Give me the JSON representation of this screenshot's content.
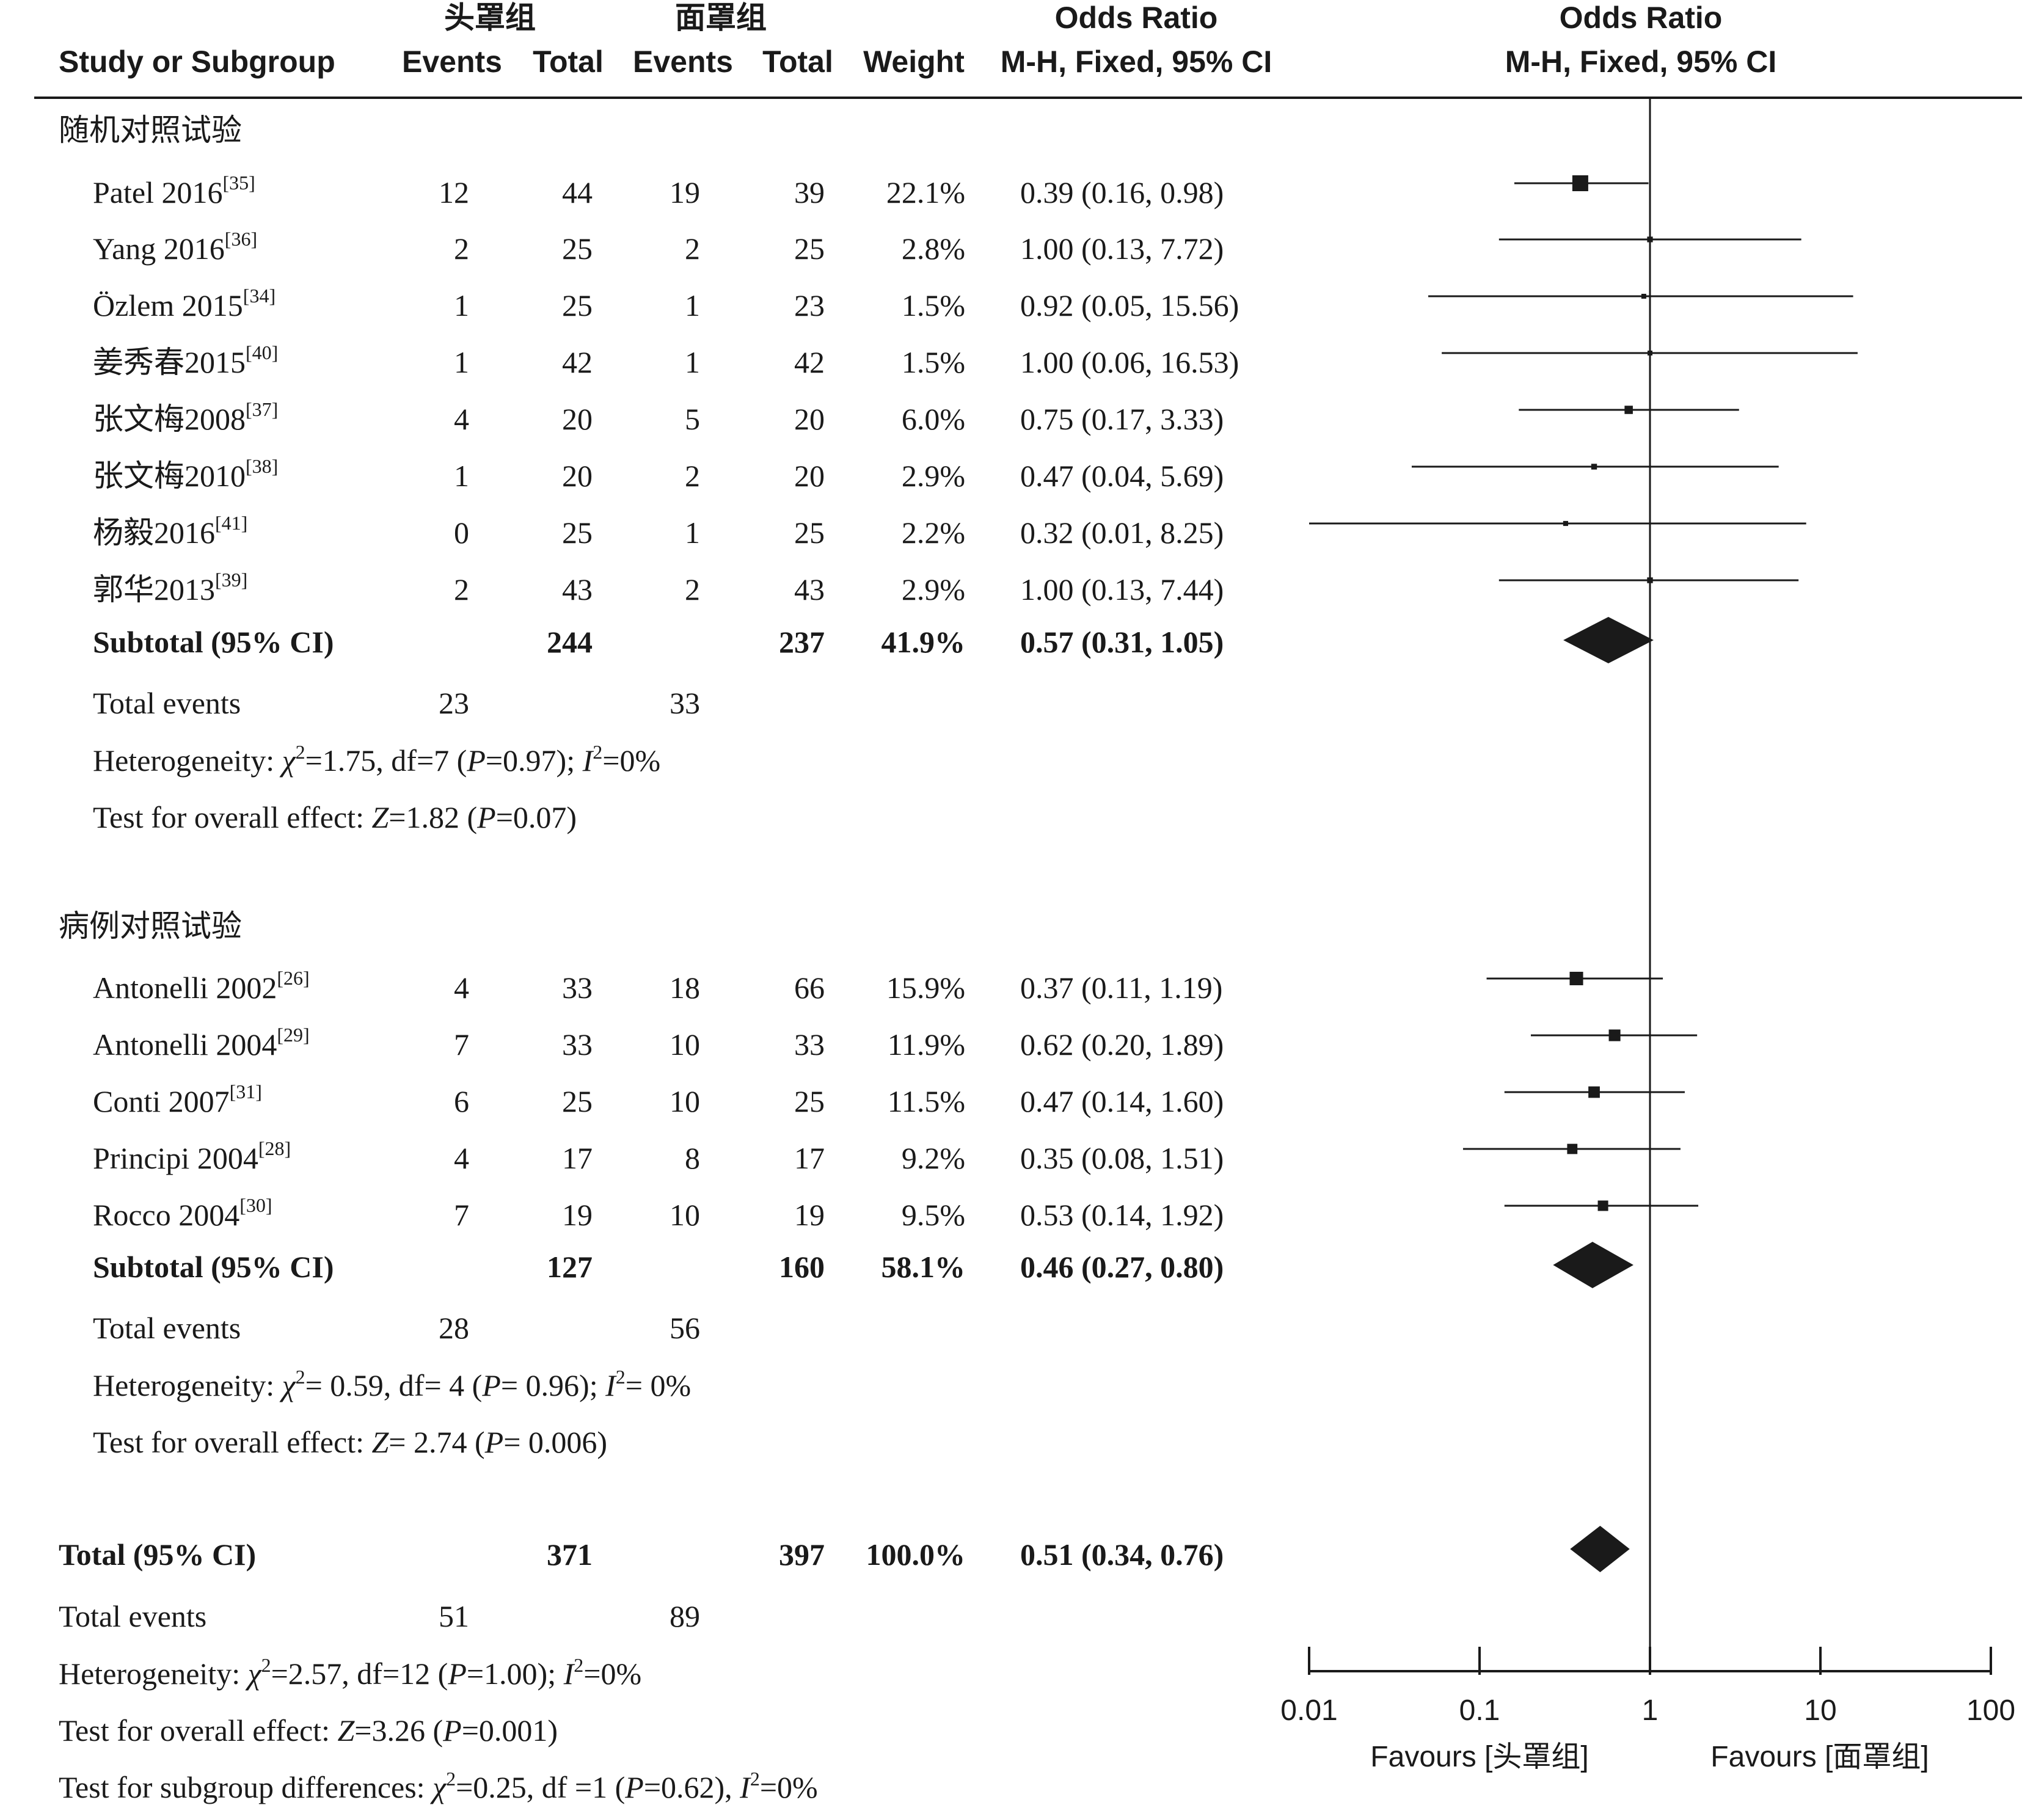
{
  "header": {
    "group1": "头罩组",
    "group2": "面罩组",
    "study_col": "Study or Subgroup",
    "events": "Events",
    "total": "Total",
    "weight": "Weight",
    "or_title": "Odds Ratio",
    "or_method": "M-H, Fixed, 95% CI",
    "plot_title": "Odds Ratio",
    "plot_method": "M-H, Fixed, 95% CI"
  },
  "axis": {
    "ticks": [
      "0.01",
      "0.1",
      "1",
      "10",
      "100"
    ],
    "favours_left": "Favours [头罩组]",
    "favours_right": "Favours [面罩组]"
  },
  "chart_data": {
    "type": "forest",
    "scale": "log",
    "xlim": [
      0.01,
      100
    ],
    "reference_line": 1,
    "subgroups": [
      {
        "name": "随机对照试验",
        "studies": [
          {
            "name": "Patel 2016",
            "ref": "[35]",
            "e1": "12",
            "n1": "44",
            "e2": "19",
            "n2": "39",
            "weight": "22.1%",
            "ci_text": "0.39 (0.16, 0.98)",
            "or": 0.39,
            "lo": 0.16,
            "hi": 0.98
          },
          {
            "name": "Yang 2016",
            "ref": "[36]",
            "e1": "2",
            "n1": "25",
            "e2": "2",
            "n2": "25",
            "weight": "2.8%",
            "ci_text": "1.00 (0.13, 7.72)",
            "or": 1.0,
            "lo": 0.13,
            "hi": 7.72
          },
          {
            "name": "Özlem 2015",
            "ref": "[34]",
            "e1": "1",
            "n1": "25",
            "e2": "1",
            "n2": "23",
            "weight": "1.5%",
            "ci_text": "0.92 (0.05, 15.56)",
            "or": 0.92,
            "lo": 0.05,
            "hi": 15.56
          },
          {
            "name": "姜秀春2015",
            "ref": "[40]",
            "e1": "1",
            "n1": "42",
            "e2": "1",
            "n2": "42",
            "weight": "1.5%",
            "ci_text": "1.00 (0.06, 16.53)",
            "or": 1.0,
            "lo": 0.06,
            "hi": 16.53
          },
          {
            "name": "张文梅2008",
            "ref": "[37]",
            "e1": "4",
            "n1": "20",
            "e2": "5",
            "n2": "20",
            "weight": "6.0%",
            "ci_text": "0.75 (0.17, 3.33)",
            "or": 0.75,
            "lo": 0.17,
            "hi": 3.33
          },
          {
            "name": "张文梅2010",
            "ref": "[38]",
            "e1": "1",
            "n1": "20",
            "e2": "2",
            "n2": "20",
            "weight": "2.9%",
            "ci_text": "0.47 (0.04, 5.69)",
            "or": 0.47,
            "lo": 0.04,
            "hi": 5.69
          },
          {
            "name": "杨毅2016",
            "ref": "[41]",
            "e1": "0",
            "n1": "25",
            "e2": "1",
            "n2": "25",
            "weight": "2.2%",
            "ci_text": "0.32 (0.01, 8.25)",
            "or": 0.32,
            "lo": 0.01,
            "hi": 8.25
          },
          {
            "name": "郭华2013",
            "ref": "[39]",
            "e1": "2",
            "n1": "43",
            "e2": "2",
            "n2": "43",
            "weight": "2.9%",
            "ci_text": "1.00 (0.13, 7.44)",
            "or": 1.0,
            "lo": 0.13,
            "hi": 7.44
          }
        ],
        "subtotal": {
          "label": "Subtotal (95% CI)",
          "n1": "244",
          "n2": "237",
          "weight": "41.9%",
          "ci_text": "0.57 (0.31, 1.05)",
          "or": 0.57,
          "lo": 0.31,
          "hi": 1.05
        },
        "total_events": {
          "label": "Total events",
          "e1": "23",
          "e2": "33"
        },
        "heterogeneity": {
          "label": "Heterogeneity: ",
          "chi2": "1.75",
          "df": "7",
          "p": "0.97",
          "i2": "0%"
        },
        "overall": {
          "label": "Test for overall effect: ",
          "z": "1.82",
          "p": "0.07"
        }
      },
      {
        "name": "病例对照试验",
        "studies": [
          {
            "name": "Antonelli 2002",
            "ref": "[26]",
            "e1": "4",
            "n1": "33",
            "e2": "18",
            "n2": "66",
            "weight": "15.9%",
            "ci_text": "0.37 (0.11, 1.19)",
            "or": 0.37,
            "lo": 0.11,
            "hi": 1.19
          },
          {
            "name": "Antonelli 2004",
            "ref": "[29]",
            "e1": "7",
            "n1": "33",
            "e2": "10",
            "n2": "33",
            "weight": "11.9%",
            "ci_text": "0.62 (0.20, 1.89)",
            "or": 0.62,
            "lo": 0.2,
            "hi": 1.89
          },
          {
            "name": "Conti 2007",
            "ref": "[31]",
            "e1": "6",
            "n1": "25",
            "e2": "10",
            "n2": "25",
            "weight": "11.5%",
            "ci_text": "0.47 (0.14, 1.60)",
            "or": 0.47,
            "lo": 0.14,
            "hi": 1.6
          },
          {
            "name": "Principi 2004",
            "ref": "[28]",
            "e1": "4",
            "n1": "17",
            "e2": "8",
            "n2": "17",
            "weight": "9.2%",
            "ci_text": "0.35 (0.08, 1.51)",
            "or": 0.35,
            "lo": 0.08,
            "hi": 1.51
          },
          {
            "name": "Rocco 2004",
            "ref": "[30]",
            "e1": "7",
            "n1": "19",
            "e2": "10",
            "n2": "19",
            "weight": "9.5%",
            "ci_text": "0.53 (0.14, 1.92)",
            "or": 0.53,
            "lo": 0.14,
            "hi": 1.92
          }
        ],
        "subtotal": {
          "label": "Subtotal (95% CI)",
          "n1": "127",
          "n2": "160",
          "weight": "58.1%",
          "ci_text": "0.46 (0.27, 0.80)",
          "or": 0.46,
          "lo": 0.27,
          "hi": 0.8
        },
        "total_events": {
          "label": "Total events",
          "e1": "28",
          "e2": "56"
        },
        "heterogeneity": {
          "label": "Heterogeneity: ",
          "chi2": " 0.59",
          "df": " 4",
          "p": " 0.96",
          "i2": " 0%"
        },
        "overall": {
          "label": "Test for overall effect: ",
          "z": " 2.74",
          "p": " 0.006"
        }
      }
    ],
    "total": {
      "label": "Total (95% CI)",
      "n1": "371",
      "n2": "397",
      "weight": "100.0%",
      "ci_text": "0.51 (0.34, 0.76)",
      "or": 0.51,
      "lo": 0.34,
      "hi": 0.76
    },
    "total_events": {
      "label": "Total events",
      "e1": "51",
      "e2": "89"
    },
    "heterogeneity": {
      "label": "Heterogeneity: ",
      "chi2": "2.57",
      "df": "12",
      "p": "1.00",
      "i2": "0%"
    },
    "overall": {
      "label": "Test for overall effect: ",
      "z": "3.26",
      "p": "0.001"
    },
    "subgroup_diff": {
      "label": "Test for subgroup differences: ",
      "chi2": "0.25",
      "df": "1",
      "p": "0.62",
      "i2": "0%"
    }
  }
}
